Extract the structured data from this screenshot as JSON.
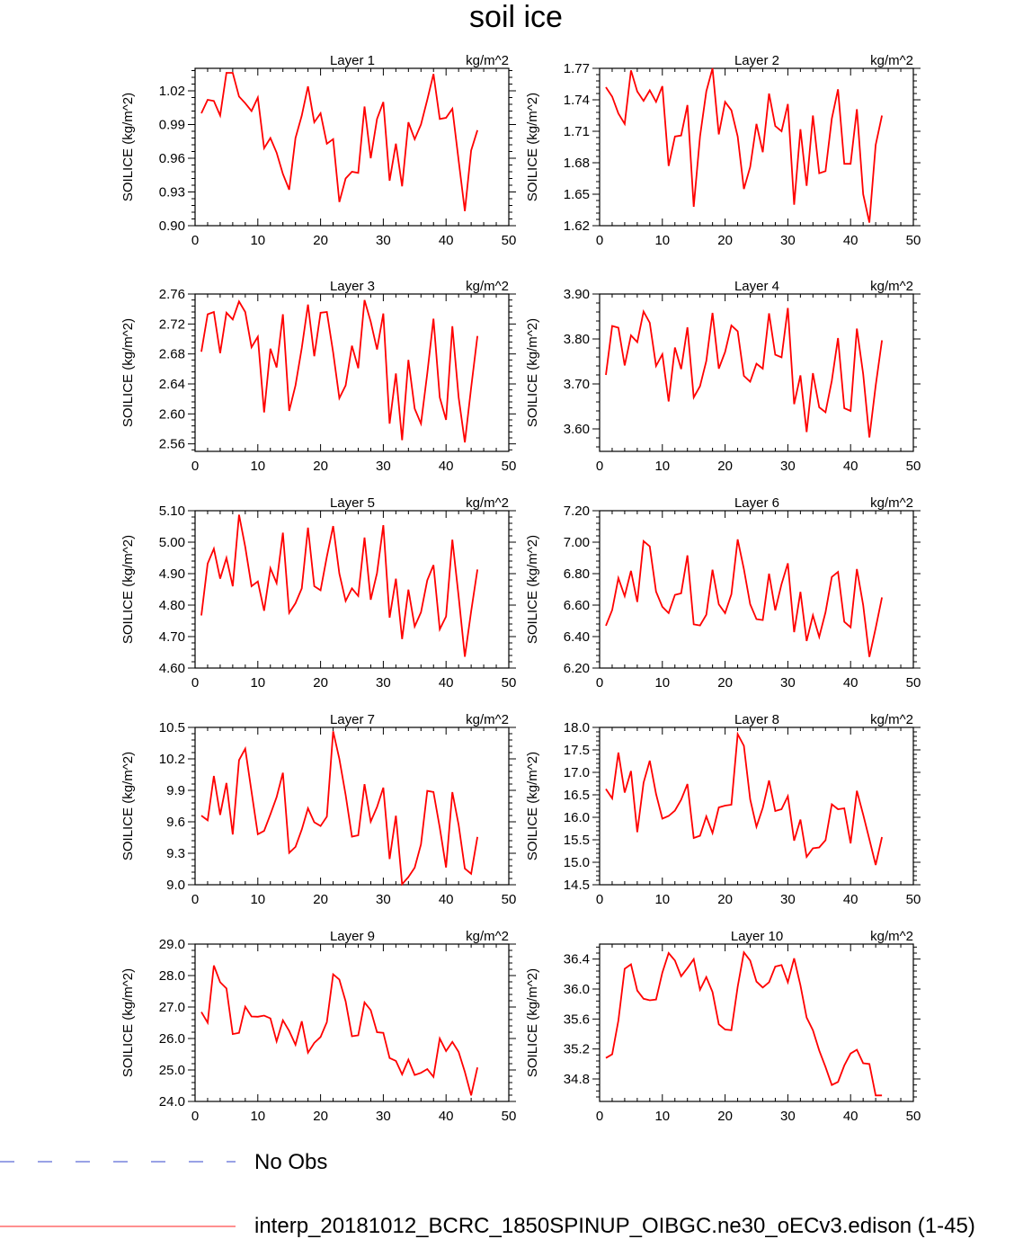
{
  "title": "soil ice",
  "legend": [
    {
      "label": "No Obs",
      "color": "#3344cc",
      "dashed": true
    },
    {
      "label": "interp_20181012_BCRC_1850SPINUP_OIBGC.ne30_oECv3.edison (1-45)",
      "color": "#ff2020",
      "dashed": false
    }
  ],
  "chart_data": [
    {
      "type": "line",
      "title": "Layer 1",
      "units": "kg/m^2",
      "ylabel": "SOILICE  (kg/m^2)",
      "color": "#ff0000",
      "xlim": [
        0,
        50
      ],
      "ylim": [
        0.9,
        1.04
      ],
      "xticks": [
        0,
        10,
        20,
        30,
        40,
        50
      ],
      "yticks": [
        "0.90",
        "0.93",
        "0.96",
        "0.99",
        "1.02"
      ],
      "x": [
        1,
        2,
        3,
        4,
        5,
        6,
        7,
        8,
        9,
        10,
        11,
        12,
        13,
        14,
        15,
        16,
        17,
        18,
        19,
        20,
        21,
        22,
        23,
        24,
        25,
        26,
        27,
        28,
        29,
        30,
        31,
        32,
        33,
        34,
        35,
        36,
        37,
        38,
        39,
        40,
        41,
        42,
        43,
        44,
        45
      ],
      "y": [
        1.0,
        1.012,
        1.011,
        0.998,
        1.036,
        1.036,
        1.015,
        1.009,
        1.002,
        1.014,
        0.969,
        0.978,
        0.965,
        0.946,
        0.932,
        0.978,
        0.998,
        1.024,
        0.992,
        1.0,
        0.973,
        0.977,
        0.921,
        0.942,
        0.948,
        0.947,
        1.006,
        0.96,
        0.995,
        1.01,
        0.94,
        0.973,
        0.935,
        0.992,
        0.977,
        0.99,
        1.012,
        1.035,
        0.995,
        0.996,
        1.004,
        0.958,
        0.913,
        0.967,
        0.985
      ]
    },
    {
      "type": "line",
      "title": "Layer 2",
      "units": "kg/m^2",
      "ylabel": "SOILICE  (kg/m^2)",
      "color": "#ff0000",
      "xlim": [
        0,
        50
      ],
      "ylim": [
        1.62,
        1.77
      ],
      "xticks": [
        0,
        10,
        20,
        30,
        40,
        50
      ],
      "yticks": [
        "1.62",
        "1.65",
        "1.68",
        "1.71",
        "1.74",
        "1.77"
      ],
      "x": [
        1,
        2,
        3,
        4,
        5,
        6,
        7,
        8,
        9,
        10,
        11,
        12,
        13,
        14,
        15,
        16,
        17,
        18,
        19,
        20,
        21,
        22,
        23,
        24,
        25,
        26,
        27,
        28,
        29,
        30,
        31,
        32,
        33,
        34,
        35,
        36,
        37,
        38,
        39,
        40,
        41,
        42,
        43,
        44,
        45
      ],
      "y": [
        1.752,
        1.743,
        1.727,
        1.717,
        1.768,
        1.748,
        1.739,
        1.749,
        1.738,
        1.753,
        1.677,
        1.705,
        1.706,
        1.735,
        1.638,
        1.705,
        1.748,
        1.77,
        1.707,
        1.738,
        1.73,
        1.705,
        1.655,
        1.676,
        1.717,
        1.69,
        1.746,
        1.715,
        1.71,
        1.736,
        1.64,
        1.712,
        1.658,
        1.725,
        1.67,
        1.672,
        1.722,
        1.75,
        1.679,
        1.679,
        1.731,
        1.65,
        1.623,
        1.697,
        1.725
      ]
    },
    {
      "type": "line",
      "title": "Layer 3",
      "units": "kg/m^2",
      "ylabel": "SOILICE  (kg/m^2)",
      "color": "#ff0000",
      "xlim": [
        0,
        50
      ],
      "ylim": [
        2.55,
        2.76
      ],
      "xticks": [
        0,
        10,
        20,
        30,
        40,
        50
      ],
      "yticks": [
        "2.56",
        "2.60",
        "2.64",
        "2.68",
        "2.72",
        "2.76"
      ],
      "x": [
        1,
        2,
        3,
        4,
        5,
        6,
        7,
        8,
        9,
        10,
        11,
        12,
        13,
        14,
        15,
        16,
        17,
        18,
        19,
        20,
        21,
        22,
        23,
        24,
        25,
        26,
        27,
        28,
        29,
        30,
        31,
        32,
        33,
        34,
        35,
        36,
        37,
        38,
        39,
        40,
        41,
        42,
        43,
        44,
        45
      ],
      "y": [
        2.683,
        2.733,
        2.736,
        2.681,
        2.735,
        2.726,
        2.75,
        2.736,
        2.689,
        2.703,
        2.602,
        2.687,
        2.662,
        2.733,
        2.604,
        2.638,
        2.688,
        2.746,
        2.677,
        2.735,
        2.736,
        2.682,
        2.621,
        2.638,
        2.691,
        2.661,
        2.752,
        2.723,
        2.686,
        2.734,
        2.587,
        2.654,
        2.565,
        2.672,
        2.607,
        2.587,
        2.654,
        2.727,
        2.622,
        2.592,
        2.717,
        2.622,
        2.562,
        2.635,
        2.704
      ]
    },
    {
      "type": "line",
      "title": "Layer 4",
      "units": "kg/m^2",
      "ylabel": "SOILICE  (kg/m^2)",
      "color": "#ff0000",
      "xlim": [
        0,
        50
      ],
      "ylim": [
        3.55,
        3.9
      ],
      "xticks": [
        0,
        10,
        20,
        30,
        40,
        50
      ],
      "yticks": [
        "3.60",
        "3.70",
        "3.80",
        "3.90"
      ],
      "x": [
        1,
        2,
        3,
        4,
        5,
        6,
        7,
        8,
        9,
        10,
        11,
        12,
        13,
        14,
        15,
        16,
        17,
        18,
        19,
        20,
        21,
        22,
        23,
        24,
        25,
        26,
        27,
        28,
        29,
        30,
        31,
        32,
        33,
        34,
        35,
        36,
        37,
        38,
        39,
        40,
        41,
        42,
        43,
        44,
        45
      ],
      "y": [
        3.72,
        3.829,
        3.825,
        3.741,
        3.808,
        3.793,
        3.861,
        3.836,
        3.74,
        3.766,
        3.661,
        3.781,
        3.733,
        3.826,
        3.67,
        3.695,
        3.751,
        3.858,
        3.734,
        3.771,
        3.83,
        3.817,
        3.718,
        3.705,
        3.745,
        3.734,
        3.857,
        3.765,
        3.759,
        3.869,
        3.655,
        3.719,
        3.593,
        3.724,
        3.648,
        3.637,
        3.707,
        3.802,
        3.646,
        3.64,
        3.823,
        3.722,
        3.581,
        3.696,
        3.797
      ]
    },
    {
      "type": "line",
      "title": "Layer 5",
      "units": "kg/m^2",
      "ylabel": "SOILICE  (kg/m^2)",
      "color": "#ff0000",
      "xlim": [
        0,
        50
      ],
      "ylim": [
        4.6,
        5.1
      ],
      "xticks": [
        0,
        10,
        20,
        30,
        40,
        50
      ],
      "yticks": [
        "4.60",
        "4.70",
        "4.80",
        "4.90",
        "5.00",
        "5.10"
      ],
      "x": [
        1,
        2,
        3,
        4,
        5,
        6,
        7,
        8,
        9,
        10,
        11,
        12,
        13,
        14,
        15,
        16,
        17,
        18,
        19,
        20,
        21,
        22,
        23,
        24,
        25,
        26,
        27,
        28,
        29,
        30,
        31,
        32,
        33,
        34,
        35,
        36,
        37,
        38,
        39,
        40,
        41,
        42,
        43,
        44,
        45
      ],
      "y": [
        4.767,
        4.932,
        4.979,
        4.884,
        4.95,
        4.86,
        5.087,
        4.985,
        4.86,
        4.875,
        4.782,
        4.917,
        4.87,
        5.03,
        4.775,
        4.806,
        4.853,
        5.046,
        4.86,
        4.847,
        4.954,
        5.051,
        4.9,
        4.813,
        4.853,
        4.829,
        5.015,
        4.817,
        4.902,
        5.054,
        4.76,
        4.884,
        4.692,
        4.849,
        4.732,
        4.777,
        4.879,
        4.927,
        4.723,
        4.764,
        5.008,
        4.827,
        4.636,
        4.78,
        4.913
      ]
    },
    {
      "type": "line",
      "title": "Layer 6",
      "units": "kg/m^2",
      "ylabel": "SOILICE  (kg/m^2)",
      "color": "#ff0000",
      "xlim": [
        0,
        50
      ],
      "ylim": [
        6.2,
        7.2
      ],
      "xticks": [
        0,
        10,
        20,
        30,
        40,
        50
      ],
      "yticks": [
        "6.20",
        "6.40",
        "6.60",
        "6.80",
        "7.00",
        "7.20"
      ],
      "x": [
        1,
        2,
        3,
        4,
        5,
        6,
        7,
        8,
        9,
        10,
        11,
        12,
        13,
        14,
        15,
        16,
        17,
        18,
        19,
        20,
        21,
        22,
        23,
        24,
        25,
        26,
        27,
        28,
        29,
        30,
        31,
        32,
        33,
        34,
        35,
        36,
        37,
        38,
        39,
        40,
        41,
        42,
        43,
        44,
        45
      ],
      "y": [
        6.469,
        6.569,
        6.772,
        6.657,
        6.818,
        6.62,
        7.007,
        6.973,
        6.686,
        6.589,
        6.549,
        6.665,
        6.675,
        6.916,
        6.478,
        6.471,
        6.539,
        6.825,
        6.605,
        6.549,
        6.669,
        7.018,
        6.829,
        6.606,
        6.511,
        6.505,
        6.8,
        6.567,
        6.734,
        6.866,
        6.428,
        6.684,
        6.372,
        6.535,
        6.398,
        6.554,
        6.779,
        6.811,
        6.494,
        6.459,
        6.829,
        6.6,
        6.271,
        6.454,
        6.649
      ]
    },
    {
      "type": "line",
      "title": "Layer 7",
      "units": "kg/m^2",
      "ylabel": "SOILICE  (kg/m^2)",
      "color": "#ff0000",
      "xlim": [
        0,
        50
      ],
      "ylim": [
        9.0,
        10.5
      ],
      "xticks": [
        0,
        10,
        20,
        30,
        40,
        50
      ],
      "yticks": [
        "9.0",
        "9.3",
        "9.6",
        "9.9",
        "10.2",
        "10.5"
      ],
      "x": [
        1,
        2,
        3,
        4,
        5,
        6,
        7,
        8,
        9,
        10,
        11,
        12,
        13,
        14,
        15,
        16,
        17,
        18,
        19,
        20,
        21,
        22,
        23,
        24,
        25,
        26,
        27,
        28,
        29,
        30,
        31,
        32,
        33,
        34,
        35,
        36,
        37,
        38,
        39,
        40,
        41,
        42,
        43,
        44,
        45
      ],
      "y": [
        9.659,
        9.614,
        10.037,
        9.666,
        9.97,
        9.479,
        10.188,
        10.297,
        9.887,
        9.481,
        9.513,
        9.671,
        9.835,
        10.067,
        9.304,
        9.361,
        9.526,
        9.729,
        9.596,
        9.56,
        9.65,
        10.463,
        10.199,
        9.856,
        9.459,
        9.471,
        9.959,
        9.602,
        9.741,
        9.926,
        9.245,
        9.658,
        9.006,
        9.073,
        9.163,
        9.385,
        9.895,
        9.884,
        9.544,
        9.165,
        9.883,
        9.57,
        9.154,
        9.105,
        9.456
      ]
    },
    {
      "type": "line",
      "title": "Layer 8",
      "units": "kg/m^2",
      "ylabel": "SOILICE  (kg/m^2)",
      "color": "#ff0000",
      "xlim": [
        0,
        50
      ],
      "ylim": [
        14.5,
        18.0
      ],
      "xticks": [
        0,
        10,
        20,
        30,
        40,
        50
      ],
      "yticks": [
        "14.5",
        "15.0",
        "15.5",
        "16.0",
        "16.5",
        "17.0",
        "17.5",
        "18.0"
      ],
      "x": [
        1,
        2,
        3,
        4,
        5,
        6,
        7,
        8,
        9,
        10,
        11,
        12,
        13,
        14,
        15,
        16,
        17,
        18,
        19,
        20,
        21,
        22,
        23,
        24,
        25,
        26,
        27,
        28,
        29,
        30,
        31,
        32,
        33,
        34,
        35,
        36,
        37,
        38,
        39,
        40,
        41,
        42,
        43,
        44,
        45
      ],
      "y": [
        16.63,
        16.42,
        17.44,
        16.55,
        17.03,
        15.67,
        16.77,
        17.26,
        16.52,
        15.97,
        16.03,
        16.15,
        16.39,
        16.74,
        15.54,
        15.59,
        16.02,
        15.65,
        16.22,
        16.26,
        16.28,
        17.85,
        17.59,
        16.4,
        15.79,
        16.21,
        16.82,
        16.14,
        16.18,
        16.47,
        15.48,
        15.95,
        15.12,
        15.31,
        15.33,
        15.49,
        16.29,
        16.18,
        16.2,
        15.42,
        16.59,
        16.06,
        15.51,
        14.94,
        15.56
      ]
    },
    {
      "type": "line",
      "title": "Layer 9",
      "units": "kg/m^2",
      "ylabel": "SOILICE  (kg/m^2)",
      "color": "#ff0000",
      "xlim": [
        0,
        50
      ],
      "ylim": [
        24.0,
        29.0
      ],
      "xticks": [
        0,
        10,
        20,
        30,
        40,
        50
      ],
      "yticks": [
        "24.0",
        "25.0",
        "26.0",
        "27.0",
        "28.0",
        "29.0"
      ],
      "x": [
        1,
        2,
        3,
        4,
        5,
        6,
        7,
        8,
        9,
        10,
        11,
        12,
        13,
        14,
        15,
        16,
        17,
        18,
        19,
        20,
        21,
        22,
        23,
        24,
        25,
        26,
        27,
        28,
        29,
        30,
        31,
        32,
        33,
        34,
        35,
        36,
        37,
        38,
        39,
        40,
        41,
        42,
        43,
        44,
        45
      ],
      "y": [
        26.84,
        26.5,
        28.32,
        27.79,
        27.59,
        26.14,
        26.18,
        27.01,
        26.7,
        26.69,
        26.73,
        26.64,
        25.91,
        26.58,
        26.24,
        25.8,
        26.55,
        25.55,
        25.86,
        26.05,
        26.52,
        28.04,
        27.87,
        27.18,
        26.07,
        26.1,
        27.15,
        26.9,
        26.2,
        26.18,
        25.38,
        25.29,
        24.86,
        25.33,
        24.84,
        24.91,
        25.03,
        24.78,
        26.0,
        25.6,
        25.89,
        25.57,
        24.94,
        24.19,
        25.08
      ]
    },
    {
      "type": "line",
      "title": "Layer 10",
      "units": "kg/m^2",
      "ylabel": "SOILICE  (kg/m^2)",
      "color": "#ff0000",
      "xlim": [
        0,
        50
      ],
      "ylim": [
        34.5,
        36.6
      ],
      "xticks": [
        0,
        10,
        20,
        30,
        40,
        50
      ],
      "yticks": [
        "34.8",
        "35.2",
        "35.6",
        "36.0",
        "36.4"
      ],
      "x": [
        1,
        2,
        3,
        4,
        5,
        6,
        7,
        8,
        9,
        10,
        11,
        12,
        13,
        14,
        15,
        16,
        17,
        18,
        19,
        20,
        21,
        22,
        23,
        24,
        25,
        26,
        27,
        28,
        29,
        30,
        31,
        32,
        33,
        34,
        35,
        36,
        37,
        38,
        39,
        40,
        41,
        42,
        43,
        44,
        45
      ],
      "y": [
        35.08,
        35.13,
        35.58,
        36.27,
        36.33,
        35.98,
        35.87,
        35.85,
        35.86,
        36.22,
        36.48,
        36.38,
        36.17,
        36.28,
        36.4,
        35.99,
        36.16,
        35.96,
        35.53,
        35.46,
        35.45,
        36.03,
        36.49,
        36.38,
        36.1,
        36.02,
        36.09,
        36.3,
        36.32,
        36.09,
        36.41,
        36.05,
        35.62,
        35.45,
        35.18,
        34.96,
        34.72,
        34.76,
        34.98,
        35.14,
        35.19,
        35.01,
        35.0,
        34.58,
        34.58
      ]
    }
  ]
}
